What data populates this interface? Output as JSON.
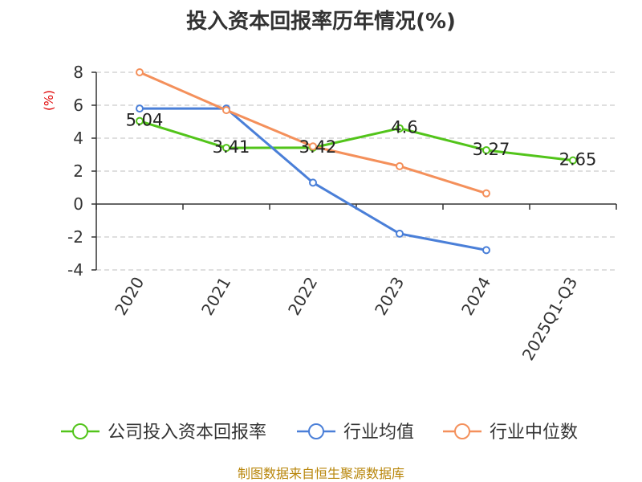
{
  "chart_data": {
    "type": "line",
    "title": "投入资本回报率历年情况(%)",
    "ylabel": "(%)",
    "xlabel": "",
    "categories": [
      "2020",
      "2021",
      "2022",
      "2023",
      "2024",
      "2025Q1-Q3"
    ],
    "ylim": [
      -4,
      8
    ],
    "yticks": [
      "8",
      "6",
      "4",
      "2",
      "0",
      "-2",
      "-4"
    ],
    "grid": true,
    "legend_position": "bottom",
    "series": [
      {
        "name": "公司投入资本回报率",
        "color": "#52c41a",
        "values": [
          5.04,
          3.41,
          3.42,
          4.6,
          3.27,
          2.65
        ],
        "labels": [
          "5.04",
          "3.41",
          "3.42",
          "4.6",
          "3.27",
          "2.65"
        ]
      },
      {
        "name": "行业均值",
        "color": "#4a7fd8",
        "values": [
          5.8,
          5.8,
          1.3,
          -1.8,
          -2.8,
          null
        ]
      },
      {
        "name": "行业中位数",
        "color": "#f4905b",
        "values": [
          8.0,
          5.7,
          3.5,
          2.3,
          0.65,
          null
        ]
      }
    ]
  },
  "source": "制图数据来自恒生聚源数据库"
}
